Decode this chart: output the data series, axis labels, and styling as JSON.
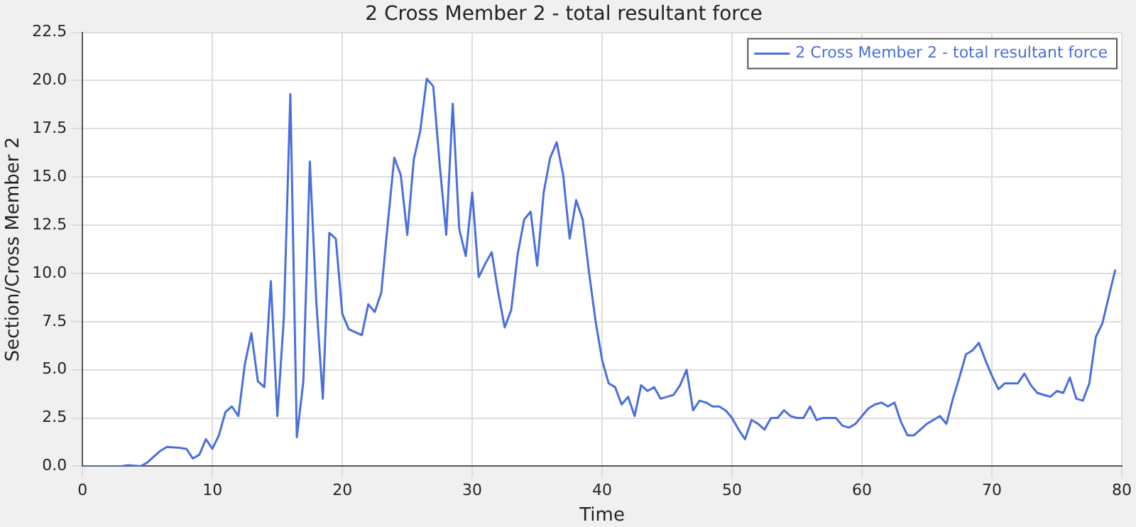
{
  "chart_data": {
    "type": "line",
    "title": "2 Cross Member 2 - total resultant force",
    "xlabel": "Time",
    "ylabel": "Section/Cross Member 2",
    "xlim": [
      0,
      80
    ],
    "xticks": [
      0,
      10,
      20,
      30,
      40,
      50,
      60,
      70,
      80
    ],
    "ylim": [
      0,
      22.5
    ],
    "yticks": [
      {
        "value": 0,
        "label": "0.0"
      },
      2.5,
      {
        "value": 5,
        "label": "5.0"
      },
      7.5,
      {
        "value": 10,
        "label": "10.0"
      },
      12.5,
      {
        "value": 15,
        "label": "15.0"
      },
      17.5,
      {
        "value": 20,
        "label": "20.0"
      },
      22.5
    ],
    "grid": true,
    "legend": "top right",
    "marker": "none",
    "line_style": "solid",
    "series": [
      {
        "name": "2 Cross Member 2 - total resultant force",
        "color": "#4a6fdc",
        "x": [
          0,
          3,
          3.5,
          4.5,
          5,
          6,
          6.5,
          7.5,
          8,
          8.5,
          9,
          9.5,
          10,
          10.5,
          11,
          11.5,
          12,
          12.5,
          13,
          13.5,
          14,
          14.5,
          15,
          15.5,
          16,
          16.5,
          17,
          17.5,
          18,
          18.5,
          19,
          19.5,
          20,
          20.5,
          21.5,
          22,
          22.5,
          23,
          23.5,
          24,
          24.5,
          25,
          25.5,
          26,
          26.5,
          27,
          27.5,
          28,
          28.5,
          29,
          29.5,
          30,
          30.5,
          31,
          31.5,
          32,
          32.5,
          33,
          33.5,
          34,
          34.5,
          35,
          35.5,
          36,
          36.5,
          37,
          37.5,
          38,
          38.5,
          39,
          39.5,
          40,
          40.5,
          41,
          41.5,
          42,
          42.5,
          43,
          43.5,
          44,
          44.5,
          45,
          45.5,
          46,
          46.5,
          47,
          47.5,
          48,
          48.5,
          49,
          49.5,
          50,
          50.5,
          51,
          51.5,
          52,
          52.5,
          53,
          53.5,
          54,
          54.5,
          55,
          55.5,
          56,
          56.5,
          57,
          58,
          58.5,
          59,
          59.5,
          60,
          60.5,
          61,
          61.5,
          62,
          62.5,
          63,
          63.5,
          64,
          64.5,
          65,
          65.5,
          66,
          66.5,
          67,
          67.5,
          68,
          68.5,
          69,
          69.5,
          70,
          70.5,
          71,
          72,
          72.5,
          73,
          73.5,
          74,
          74.5,
          75,
          75.5,
          76,
          76.5,
          77,
          77.5,
          78,
          78.5,
          79.5
        ],
        "values": [
          0,
          0,
          0.05,
          0,
          0.2,
          0.8,
          1.0,
          0.95,
          0.9,
          0.4,
          0.6,
          1.4,
          0.9,
          1.6,
          2.8,
          3.1,
          2.6,
          5.3,
          6.9,
          4.4,
          4.1,
          9.6,
          2.6,
          7.7,
          19.3,
          1.5,
          4.4,
          15.8,
          8.5,
          3.5,
          12.1,
          11.8,
          7.9,
          7.1,
          6.8,
          8.4,
          8.0,
          9.0,
          12.6,
          16.0,
          15.1,
          12.0,
          15.9,
          17.4,
          20.1,
          19.7,
          15.6,
          12.0,
          18.8,
          12.3,
          10.9,
          14.2,
          9.8,
          10.5,
          11.1,
          9.0,
          7.2,
          8.1,
          11.0,
          12.8,
          13.2,
          10.4,
          14.2,
          16.0,
          16.8,
          15.1,
          11.8,
          13.8,
          12.8,
          10.0,
          7.5,
          5.5,
          4.3,
          4.1,
          3.2,
          3.6,
          2.6,
          4.2,
          3.9,
          4.1,
          3.5,
          3.6,
          3.7,
          4.2,
          5.0,
          2.9,
          3.4,
          3.3,
          3.1,
          3.1,
          2.9,
          2.5,
          1.9,
          1.4,
          2.4,
          2.2,
          1.9,
          2.5,
          2.5,
          2.9,
          2.6,
          2.5,
          2.5,
          3.1,
          2.4,
          2.5,
          2.5,
          2.1,
          2.0,
          2.2,
          2.6,
          3.0,
          3.2,
          3.3,
          3.1,
          3.3,
          2.3,
          1.6,
          1.6,
          1.9,
          2.2,
          2.4,
          2.6,
          2.2,
          3.5,
          4.6,
          5.8,
          6.0,
          6.4,
          5.5,
          4.7,
          4.0,
          4.3,
          4.3,
          4.8,
          4.2,
          3.8,
          3.7,
          3.6,
          3.9,
          3.8,
          4.6,
          3.5,
          3.4,
          4.3,
          6.7,
          7.4,
          10.2
        ]
      }
    ]
  }
}
